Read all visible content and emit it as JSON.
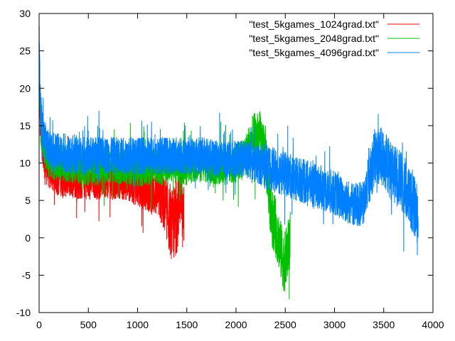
{
  "chart_data": {
    "type": "line",
    "title": "",
    "xlabel": "",
    "ylabel": "",
    "xlim": [
      0,
      4000
    ],
    "ylim": [
      -10,
      30
    ],
    "x_ticks": [
      0,
      500,
      1000,
      1500,
      2000,
      2500,
      3000,
      3500,
      4000
    ],
    "y_ticks": [
      -10,
      -5,
      0,
      5,
      10,
      15,
      20,
      25,
      30
    ],
    "x_tick_labels": [
      "0",
      "500",
      "1000",
      "1500",
      "2000",
      "2500",
      "3000",
      "3500",
      "4000"
    ],
    "y_tick_labels": [
      "-10",
      "-5",
      "0",
      "5",
      "10",
      "15",
      "20",
      "25",
      "30"
    ],
    "grid": false,
    "legend_position": "top-right",
    "series": [
      {
        "name": "\"test_5kgames_1024grad.txt\"",
        "color": "#ff0000",
        "x": [
          0,
          10,
          20,
          40,
          60,
          80,
          100,
          150,
          200,
          250,
          300,
          350,
          400,
          450,
          500,
          550,
          600,
          650,
          700,
          750,
          800,
          850,
          900,
          950,
          1000,
          1050,
          1100,
          1150,
          1200,
          1250,
          1300,
          1330,
          1360,
          1380,
          1400,
          1420,
          1440,
          1460,
          1470
        ],
        "y": [
          24,
          16,
          14,
          12,
          10,
          9.5,
          9,
          8.5,
          8,
          8,
          7.8,
          8,
          7.5,
          7.8,
          7.5,
          7.8,
          7.5,
          7.8,
          8,
          7.5,
          7.8,
          7.5,
          7.5,
          7,
          7.2,
          6.8,
          6.5,
          6,
          5.8,
          5,
          3.5,
          2,
          1.5,
          2.5,
          3,
          5,
          6.5,
          2,
          3.5
        ],
        "spread": [
          3,
          3,
          3,
          2.5,
          2.5,
          2.5,
          2.5,
          2.5,
          2.5,
          2.5,
          2.5,
          2.5,
          2.5,
          2.5,
          2.5,
          2.5,
          2.5,
          2.5,
          2.5,
          2.5,
          2.5,
          2.5,
          2.5,
          2.5,
          3,
          3,
          3,
          3,
          3,
          3.5,
          4,
          4.5,
          5,
          5,
          5,
          5,
          4.5,
          4,
          4
        ]
      },
      {
        "name": "\"test_5kgames_2048grad.txt\"",
        "color": "#00c000",
        "x": [
          0,
          10,
          20,
          40,
          60,
          80,
          100,
          150,
          200,
          300,
          400,
          500,
          600,
          700,
          800,
          900,
          1000,
          1100,
          1200,
          1300,
          1400,
          1500,
          1600,
          1700,
          1800,
          1900,
          2000,
          2100,
          2150,
          2200,
          2250,
          2300,
          2330,
          2360,
          2400,
          2430,
          2460,
          2490,
          2520,
          2550
        ],
        "y": [
          26,
          17,
          15,
          13,
          11.5,
          11,
          10.5,
          10,
          10,
          9.8,
          9.5,
          9.5,
          9.5,
          9.8,
          9.5,
          9.5,
          9.2,
          9.5,
          9.5,
          9.5,
          9.8,
          9.5,
          9.8,
          9.8,
          9.5,
          9.5,
          9.8,
          11,
          12.5,
          13.5,
          13.5,
          11,
          7,
          3,
          1.5,
          0,
          -2,
          -3.5,
          -2,
          0
        ],
        "spread": [
          3,
          3,
          3,
          2.5,
          2.5,
          2.5,
          2.5,
          2.5,
          2.5,
          2.5,
          2.5,
          2.5,
          2.5,
          2.5,
          2.5,
          2.5,
          2.5,
          2.5,
          2.5,
          2.5,
          2.5,
          2.5,
          2.5,
          2.5,
          2.5,
          2.5,
          2.5,
          3,
          3.5,
          3.5,
          3.5,
          4,
          4,
          4,
          4,
          4,
          4,
          4,
          4,
          4
        ]
      },
      {
        "name": "\"test_5kgames_4096grad.txt\"",
        "color": "#0080ff",
        "x": [
          0,
          10,
          20,
          40,
          60,
          80,
          100,
          150,
          200,
          300,
          400,
          500,
          600,
          700,
          800,
          900,
          1000,
          1100,
          1200,
          1300,
          1400,
          1500,
          1600,
          1700,
          1800,
          1900,
          2000,
          2100,
          2200,
          2300,
          2400,
          2500,
          2600,
          2700,
          2800,
          2900,
          3000,
          3100,
          3200,
          3300,
          3350,
          3400,
          3450,
          3500,
          3550,
          3600,
          3650,
          3700,
          3750,
          3800,
          3850
        ],
        "y": [
          27,
          18,
          16,
          14,
          13,
          12.5,
          12,
          11.5,
          11.5,
          11,
          11,
          11,
          11,
          11,
          11,
          11,
          11,
          11,
          11,
          11,
          11,
          11,
          11,
          11,
          10.5,
          10.5,
          10.5,
          10.5,
          10,
          9.5,
          9,
          8.5,
          8,
          7.5,
          7,
          6.5,
          6,
          5,
          4.5,
          4.5,
          8,
          10.5,
          11,
          10.5,
          9.5,
          8.5,
          8,
          7,
          5.5,
          4.5,
          3
        ],
        "spread": [
          3,
          3,
          3,
          2.5,
          2.5,
          2.5,
          2.5,
          2.5,
          2.5,
          2.5,
          2.5,
          2.5,
          2.5,
          2.5,
          2.5,
          2.5,
          2.5,
          2.5,
          2.5,
          2.5,
          2.5,
          2.5,
          2.5,
          2.5,
          2.5,
          2.5,
          2.5,
          2.5,
          2.5,
          3,
          3,
          3,
          3,
          3,
          3,
          3,
          3,
          3,
          3,
          3,
          3.5,
          4,
          4,
          4,
          4,
          4,
          4,
          4,
          4,
          4,
          4
        ]
      }
    ]
  }
}
